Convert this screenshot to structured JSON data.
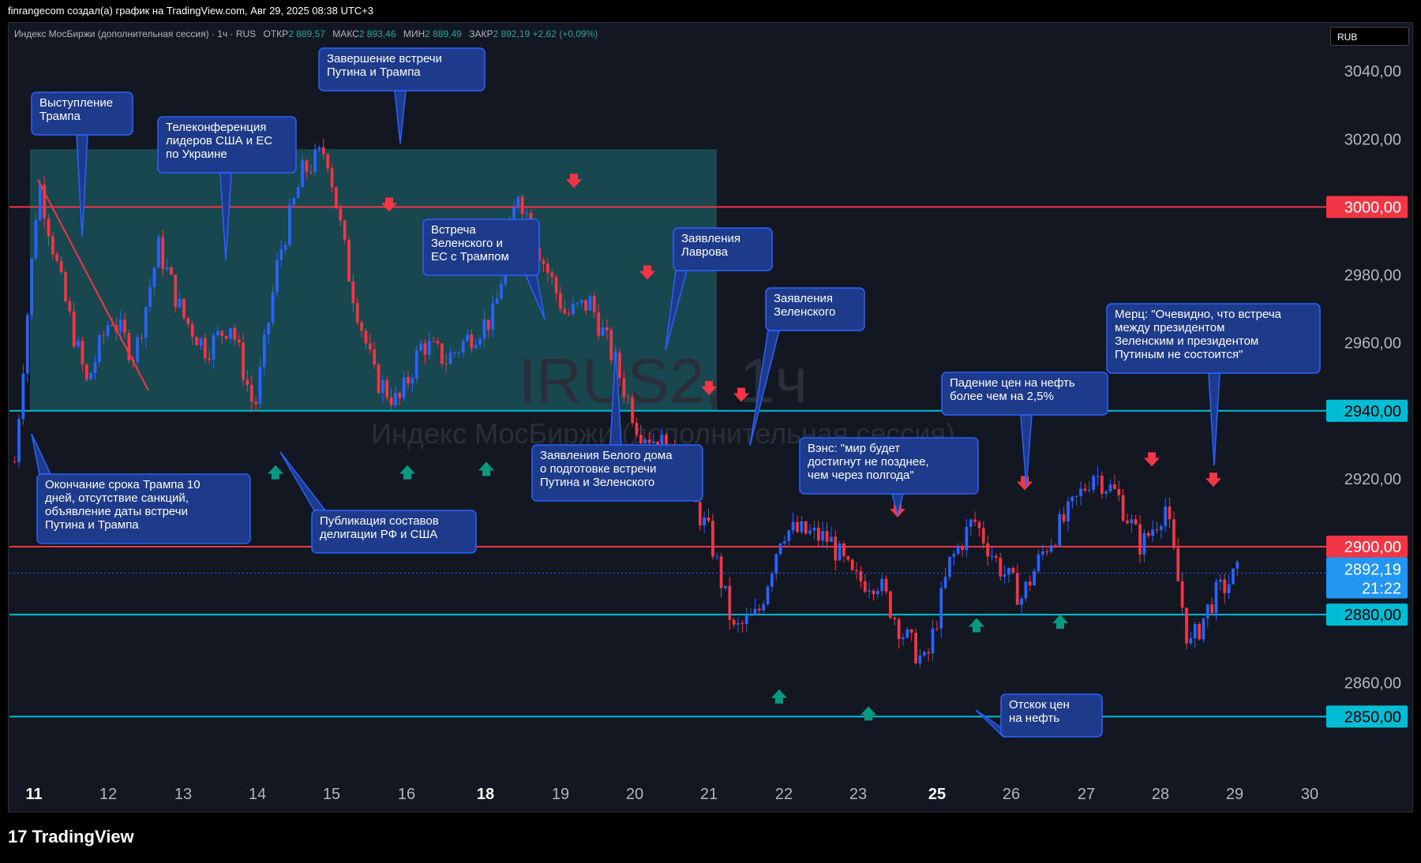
{
  "header_text": "finrangecom создал(а) график на TradingView.com, Авг 29, 2025 08:38 UTC+3",
  "legend": {
    "instrument": "Индекс МосБиржи (дополнительная сессия) · 1ч · RUS",
    "open_label": "ОТКР",
    "open": "2 889,57",
    "high_label": "МАКС",
    "high": "2 893,46",
    "low_label": "МИН",
    "low": "2 889,49",
    "close_label": "ЗАКР",
    "close": "2 892,19",
    "change": "+2,62 (+0,09%)"
  },
  "currency": "RUB",
  "watermark": {
    "symbol": "IRUS2, 1ч",
    "name": "Индекс МосБиржи (дополнительная сессия)"
  },
  "footer_brand": "TradingView",
  "colors": {
    "up": "#2962ff",
    "down": "#f23645",
    "red_level": "#f23645",
    "cyan_level": "#00bcd4",
    "zone": "#1f6f74",
    "note_bg": "#1e3a8a",
    "note_border": "#2962ff"
  },
  "chart_data": {
    "type": "candlestick",
    "ylim": [
      2838,
      3047
    ],
    "y_ticks": [
      "3040,00",
      "3020,00",
      "2980,00",
      "2960,00",
      "2920,00",
      "2860,00"
    ],
    "x_ticks": [
      "11",
      "12",
      "13",
      "14",
      "15",
      "16",
      "18",
      "19",
      "20",
      "21",
      "22",
      "23",
      "25",
      "26",
      "27",
      "28",
      "29",
      "30"
    ],
    "x_ticks_bold": [
      "11",
      "18",
      "25"
    ],
    "price_levels": [
      {
        "value": 3000,
        "label": "3000,00",
        "color": "#f23645"
      },
      {
        "value": 2940,
        "label": "2940,00",
        "color": "#00bcd4"
      },
      {
        "value": 2900,
        "label": "2900,00",
        "color": "#f23645"
      },
      {
        "value": 2880,
        "label": "2880,00",
        "color": "#00bcd4"
      },
      {
        "value": 2850,
        "label": "2850,00",
        "color": "#00bcd4"
      }
    ],
    "last_price": {
      "value": 2892.19,
      "label": "2892,19",
      "countdown": "21:22"
    },
    "zone": {
      "from_date": "11",
      "to_date": "21",
      "low": 2940,
      "high": 3017
    },
    "anchors": [
      2925,
      3008,
      2975,
      2948,
      2968,
      2956,
      2988,
      2968,
      2958,
      2966,
      2940,
      2985,
      3010,
      3017,
      2978,
      2950,
      2942,
      2960,
      2955,
      2962,
      2968,
      3005,
      2985,
      2968,
      2972,
      2955,
      2935,
      2930,
      2918,
      2903,
      2875,
      2880,
      2905,
      2904,
      2902,
      2890,
      2890,
      2875,
      2865,
      2895,
      2908,
      2895,
      2885,
      2900,
      2910,
      2922,
      2915,
      2900,
      2912,
      2870,
      2885,
      2892
    ],
    "notes": [
      {
        "lines": [
          "Выступление",
          "Трампа"
        ]
      },
      {
        "lines": [
          "Телеконференция",
          "лидеров США и ЕС",
          "по Украине"
        ]
      },
      {
        "lines": [
          "Завершение встречи",
          "Путина и Трампа"
        ]
      },
      {
        "lines": [
          "Встреча",
          "Зеленского и",
          "ЕС с Трампом"
        ]
      },
      {
        "lines": [
          "Заявления",
          "Лаврова"
        ]
      },
      {
        "lines": [
          "Заявления",
          "Зеленского"
        ]
      },
      {
        "lines": [
          "Мерц: \"Очевидно, что встреча",
          "между президентом",
          "Зеленским и президентом",
          "Путиным не состоится\""
        ]
      },
      {
        "lines": [
          "Падение цен на нефть",
          "более чем на 2,5%"
        ]
      },
      {
        "lines": [
          "Вэнс: \"мир будет",
          "достигнут не позднее,",
          "чем через полгода\""
        ]
      },
      {
        "lines": [
          "Заявления Белого дома",
          "о подготовке встречи",
          "Путина и Зеленского"
        ]
      },
      {
        "lines": [
          "Окончание срока Трампа 10",
          "дней, отсутствие санкций,",
          "объявление даты встречи",
          "Путина и Трампа"
        ]
      },
      {
        "lines": [
          "Публикация составов",
          "делигации РФ и США"
        ]
      },
      {
        "lines": [
          "Отскок цен",
          "на нефть"
        ]
      }
    ]
  }
}
